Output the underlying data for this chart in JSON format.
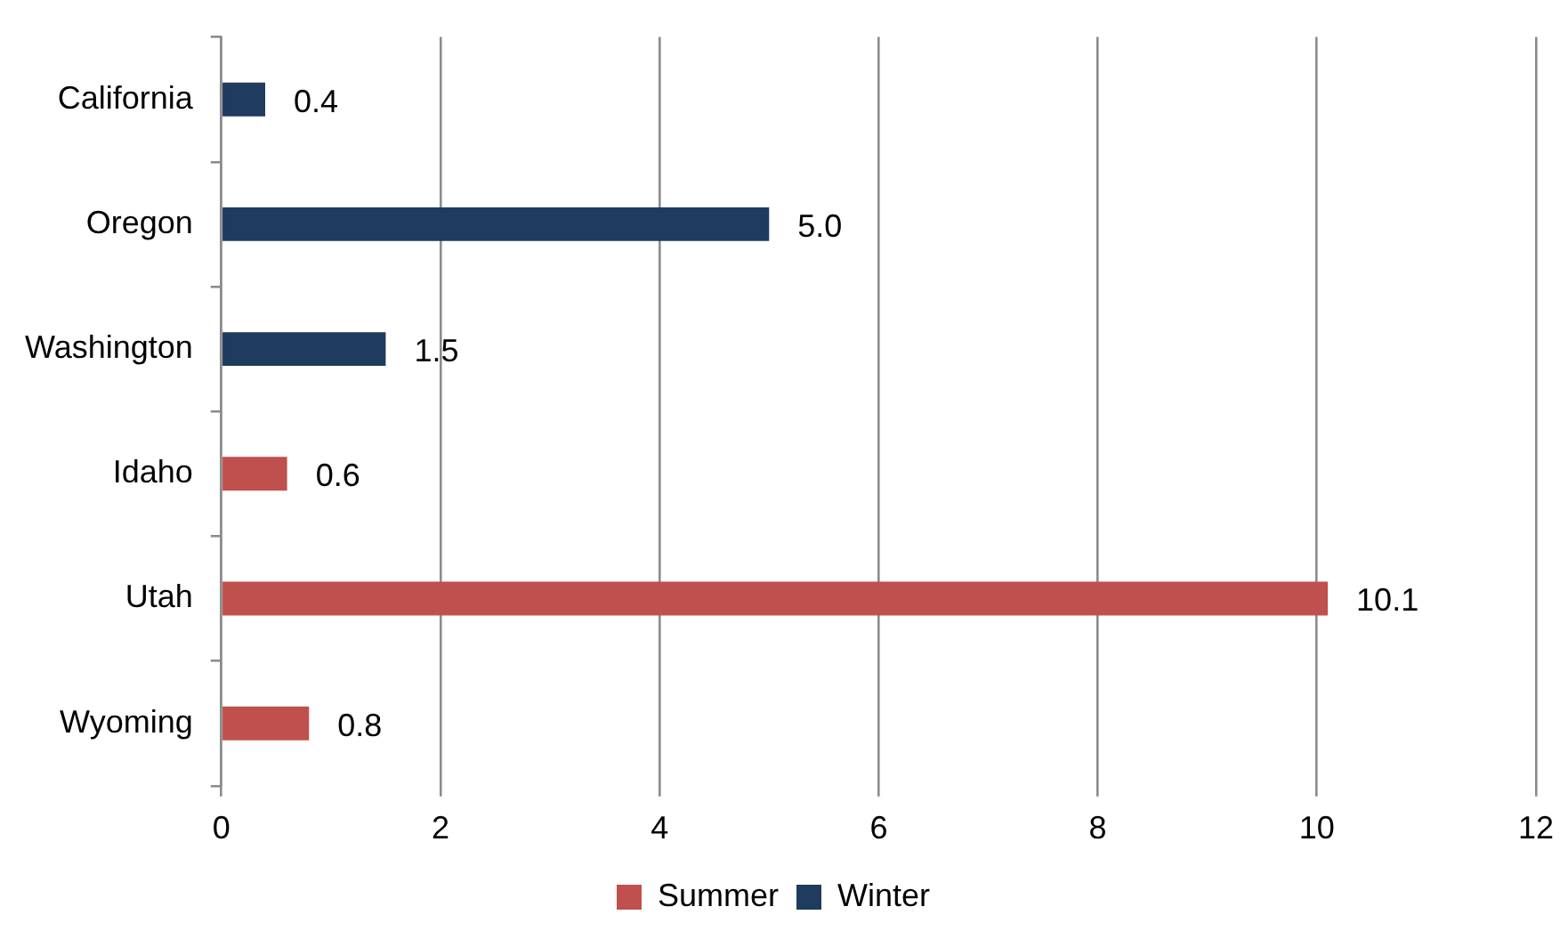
{
  "chart_data": {
    "type": "bar",
    "orientation": "horizontal",
    "stacked": true,
    "categories": [
      "California",
      "Oregon",
      "Washington",
      "Idaho",
      "Utah",
      "Wyoming"
    ],
    "series": [
      {
        "name": "Summer",
        "color": "#c0504d",
        "values": [
          null,
          null,
          null,
          0.6,
          10.1,
          0.8
        ],
        "value_labels": [
          null,
          null,
          null,
          "0.6",
          "10.1",
          "0.8"
        ]
      },
      {
        "name": "Winter",
        "color": "#1f3b5e",
        "values": [
          0.4,
          5.0,
          1.5,
          null,
          null,
          null
        ],
        "value_labels": [
          "0.4",
          "5.0",
          "1.5",
          null,
          null,
          null
        ]
      }
    ],
    "xlim": [
      0,
      12
    ],
    "xticks": [
      0,
      2,
      4,
      6,
      8,
      10,
      12
    ],
    "grid": "x",
    "legend": "bottom"
  }
}
